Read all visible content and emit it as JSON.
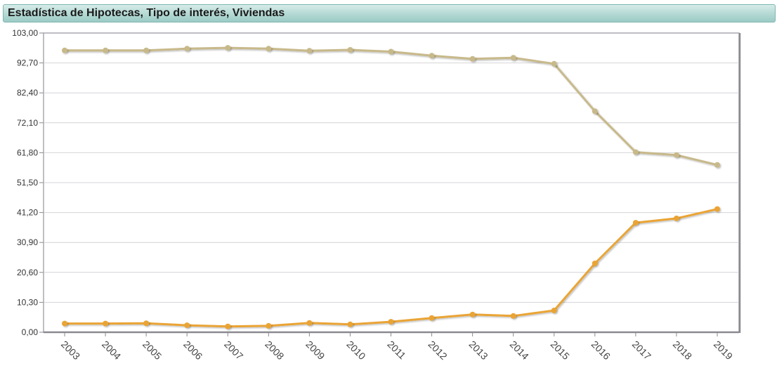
{
  "title": "Estadística de Hipotecas, Tipo de interés, Viviendas",
  "chart_data": {
    "type": "line",
    "categories": [
      "2003",
      "2004",
      "2005",
      "2006",
      "2007",
      "2008",
      "2009",
      "2010",
      "2011",
      "2012",
      "2013",
      "2014",
      "2015",
      "2016",
      "2017",
      "2018",
      "2019"
    ],
    "y_ticks": [
      "0,00",
      "10,30",
      "20,60",
      "30,90",
      "41,20",
      "51,50",
      "61,80",
      "72,10",
      "82,40",
      "92,70",
      "103,00"
    ],
    "ylim": [
      0,
      103
    ],
    "series": [
      {
        "color": "#c8b98a",
        "values": [
          97.0,
          97.0,
          97.0,
          97.6,
          97.9,
          97.6,
          96.9,
          97.2,
          96.6,
          95.2,
          94.1,
          94.5,
          92.4,
          76.1,
          62.0,
          61.0,
          57.6
        ]
      },
      {
        "color": "#eaa434",
        "values": [
          3.0,
          3.0,
          3.1,
          2.4,
          2.0,
          2.2,
          3.2,
          2.7,
          3.6,
          4.9,
          6.1,
          5.6,
          7.5,
          23.7,
          37.7,
          39.2,
          42.4
        ]
      }
    ],
    "grid": true
  }
}
